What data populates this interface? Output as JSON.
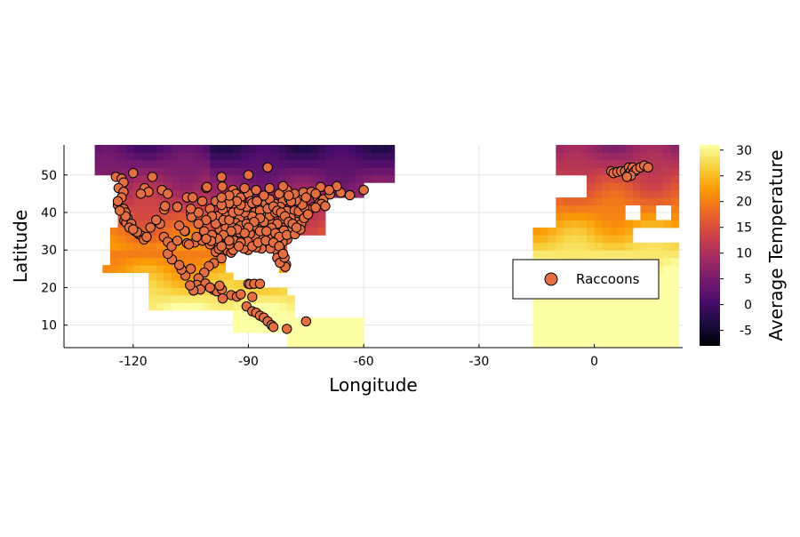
{
  "chart_data": {
    "type": "scatter",
    "xlabel": "Longitude",
    "ylabel": "Latitude",
    "xlim": [
      -138,
      23
    ],
    "ylim": [
      4,
      58
    ],
    "x_ticks": [
      "-120",
      "-90",
      "-60",
      "-30",
      "0"
    ],
    "x_tick_values": [
      -120,
      -90,
      -60,
      -30,
      0
    ],
    "y_ticks": [
      "10",
      "20",
      "30",
      "40",
      "50"
    ],
    "y_tick_values": [
      10,
      20,
      30,
      40,
      50
    ],
    "grid": true,
    "legend_position": "bottom-right",
    "colorbar": {
      "label": "Average Temperature",
      "range": [
        -8,
        31
      ],
      "ticks": [
        "-5",
        "0",
        "5",
        "10",
        "15",
        "20",
        "25",
        "30"
      ],
      "tick_values": [
        -5,
        0,
        5,
        10,
        15,
        20,
        25,
        30
      ],
      "colormap": "inferno",
      "colors": [
        "#000004",
        "#1b0c41",
        "#4a0c6b",
        "#781c6d",
        "#a52c60",
        "#cf4446",
        "#ed6925",
        "#fb9b06",
        "#f7d13d",
        "#fcffa4"
      ]
    },
    "background_raster": "temperature heatmap of North America, Central America, Europe and North Africa",
    "series": [
      {
        "name": "Raccoons",
        "color": "#e36e42",
        "edge_color": "#000000",
        "points": [
          [
            -124.5,
            49.5
          ],
          [
            -123,
            49
          ],
          [
            -122.5,
            48
          ],
          [
            -123.8,
            46.5
          ],
          [
            -122.5,
            45.5
          ],
          [
            -123,
            44
          ],
          [
            -124,
            42
          ],
          [
            -122.5,
            41
          ],
          [
            -122,
            40
          ],
          [
            -121.5,
            38.5
          ],
          [
            -122.3,
            37.8
          ],
          [
            -121.8,
            37.3
          ],
          [
            -120.5,
            37
          ],
          [
            -121,
            36
          ],
          [
            -119.5,
            35
          ],
          [
            -118.5,
            34.2
          ],
          [
            -117.8,
            33.8
          ],
          [
            -117.2,
            32.8
          ],
          [
            -116.5,
            33.5
          ],
          [
            -119,
            34.8
          ],
          [
            -120,
            35.5
          ],
          [
            -122,
            39
          ],
          [
            -123.5,
            40.5
          ],
          [
            -124,
            43
          ],
          [
            -117,
            46.5
          ],
          [
            -116,
            45.5
          ],
          [
            -115.5,
            36
          ],
          [
            -112,
            33.5
          ],
          [
            -111,
            32.2
          ],
          [
            -113,
            37
          ],
          [
            -114,
            38
          ],
          [
            -106.5,
            35
          ],
          [
            -105,
            39.7
          ],
          [
            -104.8,
            38.8
          ],
          [
            -106,
            31.8
          ],
          [
            -104,
            32
          ],
          [
            -100,
            31.5
          ],
          [
            -98.5,
            29.5
          ],
          [
            -97.7,
            30.3
          ],
          [
            -96.8,
            32.8
          ],
          [
            -95.4,
            29.8
          ],
          [
            -94.5,
            29.3
          ],
          [
            -97,
            27.8
          ],
          [
            -99,
            26.5
          ],
          [
            -100.3,
            25.7
          ],
          [
            -101.5,
            24
          ],
          [
            -103,
            22.5
          ],
          [
            -103.4,
            20.7
          ],
          [
            -101.2,
            21.1
          ],
          [
            -99.1,
            19.4
          ],
          [
            -98.2,
            19
          ],
          [
            -96.9,
            19.5
          ],
          [
            -97.5,
            20.5
          ],
          [
            -100,
            20
          ],
          [
            -102.5,
            19.5
          ],
          [
            -104.3,
            19.2
          ],
          [
            -105.2,
            20.6
          ],
          [
            -106.4,
            23.2
          ],
          [
            -107.4,
            24.8
          ],
          [
            -109.9,
            27.5
          ],
          [
            -111,
            29
          ],
          [
            -110,
            31
          ],
          [
            -108,
            26
          ],
          [
            -105,
            25
          ],
          [
            -96.7,
            17.1
          ],
          [
            -94.5,
            18
          ],
          [
            -93,
            17.6
          ],
          [
            -92,
            18.2
          ],
          [
            -90,
            21
          ],
          [
            -89.6,
            20.9
          ],
          [
            -88.5,
            21
          ],
          [
            -87,
            21
          ],
          [
            -89,
            17.5
          ],
          [
            -90.5,
            15
          ],
          [
            -89,
            13.7
          ],
          [
            -88,
            13.3
          ],
          [
            -87,
            12.5
          ],
          [
            -86,
            12
          ],
          [
            -85,
            11
          ],
          [
            -84,
            10
          ],
          [
            -83.5,
            9.5
          ],
          [
            -80,
            9
          ],
          [
            -75,
            11
          ],
          [
            -120,
            50.5
          ],
          [
            -115,
            49.5
          ],
          [
            -118,
            45
          ],
          [
            -112.5,
            46
          ],
          [
            -111,
            45
          ],
          [
            -106,
            44
          ],
          [
            -104.5,
            44
          ],
          [
            -101,
            46.5
          ],
          [
            -97,
            49.5
          ],
          [
            -96.8,
            46.9
          ],
          [
            -94,
            46
          ],
          [
            -93.3,
            45
          ],
          [
            -92,
            44
          ],
          [
            -90,
            45
          ],
          [
            -89.4,
            43
          ],
          [
            -88,
            42
          ],
          [
            -87.6,
            41.9
          ],
          [
            -86.2,
            41.7
          ],
          [
            -85.5,
            42.3
          ],
          [
            -83,
            42.3
          ],
          [
            -84.5,
            43.5
          ],
          [
            -86,
            44.5
          ],
          [
            -84.5,
            46.5
          ],
          [
            -88,
            46
          ],
          [
            -91,
            46.5
          ],
          [
            -85,
            52
          ],
          [
            -90,
            50
          ],
          [
            -81,
            43
          ],
          [
            -79.4,
            43.7
          ],
          [
            -77,
            44
          ],
          [
            -75.7,
            45.4
          ],
          [
            -73.6,
            45.5
          ],
          [
            -71.2,
            46.8
          ],
          [
            -72,
            44
          ],
          [
            -71.5,
            42.5
          ],
          [
            -70.5,
            43.5
          ],
          [
            -71,
            42.3
          ],
          [
            -73,
            41.5
          ],
          [
            -74,
            40.7
          ],
          [
            -75.2,
            40
          ],
          [
            -76.6,
            39.3
          ],
          [
            -77,
            38.9
          ],
          [
            -77.5,
            37.5
          ],
          [
            -76.3,
            36.9
          ],
          [
            -78.6,
            35.8
          ],
          [
            -80.8,
            35.2
          ],
          [
            -79.9,
            32.8
          ],
          [
            -81.1,
            32.1
          ],
          [
            -81.7,
            30.3
          ],
          [
            -82.5,
            29.6
          ],
          [
            -81.4,
            28.5
          ],
          [
            -82.5,
            27.9
          ],
          [
            -80.2,
            26.1
          ],
          [
            -80.4,
            25.5
          ],
          [
            -81.8,
            26.6
          ],
          [
            -80.6,
            28
          ],
          [
            -84.3,
            30.4
          ],
          [
            -86.6,
            30.4
          ],
          [
            -88,
            30.7
          ],
          [
            -90.1,
            30
          ],
          [
            -91.2,
            30.4
          ],
          [
            -93.7,
            32.5
          ],
          [
            -92.3,
            34.7
          ],
          [
            -90,
            35.1
          ],
          [
            -86.8,
            36.2
          ],
          [
            -84.5,
            38
          ],
          [
            -85.7,
            38.3
          ],
          [
            -86.2,
            39.8
          ],
          [
            -84.5,
            39.1
          ],
          [
            -83,
            40
          ],
          [
            -81.7,
            41.5
          ],
          [
            -80,
            40.4
          ],
          [
            -78,
            40.5
          ],
          [
            -76.9,
            40.3
          ],
          [
            -75.5,
            41.4
          ],
          [
            -76,
            42.1
          ],
          [
            -77.6,
            43.2
          ],
          [
            -78.9,
            42.9
          ],
          [
            -79,
            38.5
          ],
          [
            -81,
            38.4
          ],
          [
            -82.5,
            37
          ],
          [
            -84,
            35.9
          ],
          [
            -84.4,
            33.7
          ],
          [
            -86.8,
            33.5
          ],
          [
            -88.4,
            33.5
          ],
          [
            -89.6,
            34.3
          ],
          [
            -90.2,
            32.3
          ],
          [
            -92,
            32
          ],
          [
            -94,
            30
          ],
          [
            -95,
            31.5
          ],
          [
            -96,
            33.5
          ],
          [
            -97.5,
            35.5
          ],
          [
            -95.9,
            36.1
          ],
          [
            -97.3,
            37.7
          ],
          [
            -94.6,
            39.1
          ],
          [
            -96,
            41.3
          ],
          [
            -95.7,
            39
          ],
          [
            -98,
            39
          ],
          [
            -100,
            41
          ],
          [
            -100.8,
            46.8
          ],
          [
            -98.5,
            43
          ],
          [
            -96.7,
            40.8
          ],
          [
            -93.6,
            41.6
          ],
          [
            -91.5,
            41.7
          ],
          [
            -90.2,
            38.6
          ],
          [
            -89.6,
            39.8
          ],
          [
            -88.2,
            40.1
          ],
          [
            -87.5,
            37.9
          ],
          [
            -92.3,
            38.6
          ],
          [
            -93.3,
            37.2
          ],
          [
            -94.1,
            36
          ],
          [
            -92,
            36.5
          ],
          [
            -90.5,
            37
          ],
          [
            -88.7,
            36.5
          ],
          [
            -87,
            35
          ],
          [
            -85.3,
            35
          ],
          [
            -83,
            34.5
          ],
          [
            -82,
            33.5
          ],
          [
            -80,
            34
          ],
          [
            -77.9,
            34.2
          ],
          [
            -76.5,
            35.5
          ],
          [
            -75.5,
            38.5
          ],
          [
            -74.5,
            39.5
          ],
          [
            -72.5,
            41.3
          ],
          [
            -70,
            41.7
          ],
          [
            -68.8,
            44.8
          ],
          [
            -66,
            45.3
          ],
          [
            -63.6,
            44.6
          ],
          [
            -60,
            46
          ],
          [
            -67,
            47
          ],
          [
            -69,
            46
          ],
          [
            -72.5,
            45
          ],
          [
            -75,
            44
          ],
          [
            -78,
            45
          ],
          [
            -80,
            46
          ],
          [
            -82,
            45
          ],
          [
            -81,
            47
          ],
          [
            -79.5,
            44.5
          ],
          [
            -89,
            39
          ],
          [
            -91,
            40
          ],
          [
            -87,
            40.5
          ],
          [
            -85,
            41
          ],
          [
            -83.5,
            41.6
          ],
          [
            -82.5,
            40.5
          ],
          [
            -81.5,
            40
          ],
          [
            -80.5,
            39
          ],
          [
            -79.5,
            37.5
          ],
          [
            -78.5,
            37
          ],
          [
            -77.5,
            36
          ],
          [
            -86,
            37.5
          ],
          [
            -87,
            38.5
          ],
          [
            -88.5,
            37.5
          ],
          [
            -90,
            36
          ],
          [
            -91,
            34.5
          ],
          [
            -93,
            35.5
          ],
          [
            -94.5,
            35
          ],
          [
            -96.5,
            34
          ],
          [
            -98,
            33
          ],
          [
            -97,
            31
          ],
          [
            -95,
            32.5
          ],
          [
            -92.5,
            31
          ],
          [
            -89,
            31
          ],
          [
            -87.5,
            32
          ],
          [
            -85.5,
            32.5
          ],
          [
            -83.5,
            32
          ],
          [
            -82,
            31
          ],
          [
            -81,
            29
          ],
          [
            -98.5,
            37
          ],
          [
            -99.5,
            39
          ],
          [
            -101,
            38
          ],
          [
            -96.5,
            38
          ],
          [
            -95,
            38
          ],
          [
            -94,
            40
          ],
          [
            -92.5,
            40.5
          ],
          [
            -90.5,
            41.5
          ],
          [
            -89,
            42.5
          ],
          [
            -87.8,
            43
          ],
          [
            -92,
            42
          ],
          [
            -93,
            43
          ],
          [
            -95,
            42.5
          ],
          [
            -97,
            42
          ],
          [
            -95,
            44.5
          ],
          [
            -97,
            44
          ],
          [
            -102,
            43
          ],
          [
            -103,
            40
          ],
          [
            -105,
            41
          ],
          [
            -108.5,
            41.5
          ],
          [
            -111.9,
            40.8
          ],
          [
            -111.7,
            41.7
          ],
          [
            -106.6,
            35.1
          ],
          [
            -108,
            36.5
          ],
          [
            -103,
            37
          ],
          [
            -101.5,
            35
          ],
          [
            -99.5,
            34
          ],
          [
            -102,
            32.5
          ],
          [
            -103.5,
            33.5
          ],
          [
            -99.7,
            32.4
          ],
          [
            -101,
            33
          ],
          [
            -105.5,
            31.5
          ],
          [
            -108.5,
            32.5
          ],
          [
            4.4,
            51
          ],
          [
            5,
            50.5
          ],
          [
            6,
            50.8
          ],
          [
            7,
            51
          ],
          [
            8,
            51
          ],
          [
            8.7,
            50
          ],
          [
            9,
            52
          ],
          [
            9.5,
            51
          ],
          [
            10,
            52
          ],
          [
            10.5,
            51
          ],
          [
            11,
            51.5
          ],
          [
            12,
            52
          ],
          [
            13,
            52.5
          ],
          [
            14,
            52
          ],
          [
            9.5,
            49.8
          ],
          [
            8.5,
            49.5
          ]
        ]
      }
    ]
  }
}
